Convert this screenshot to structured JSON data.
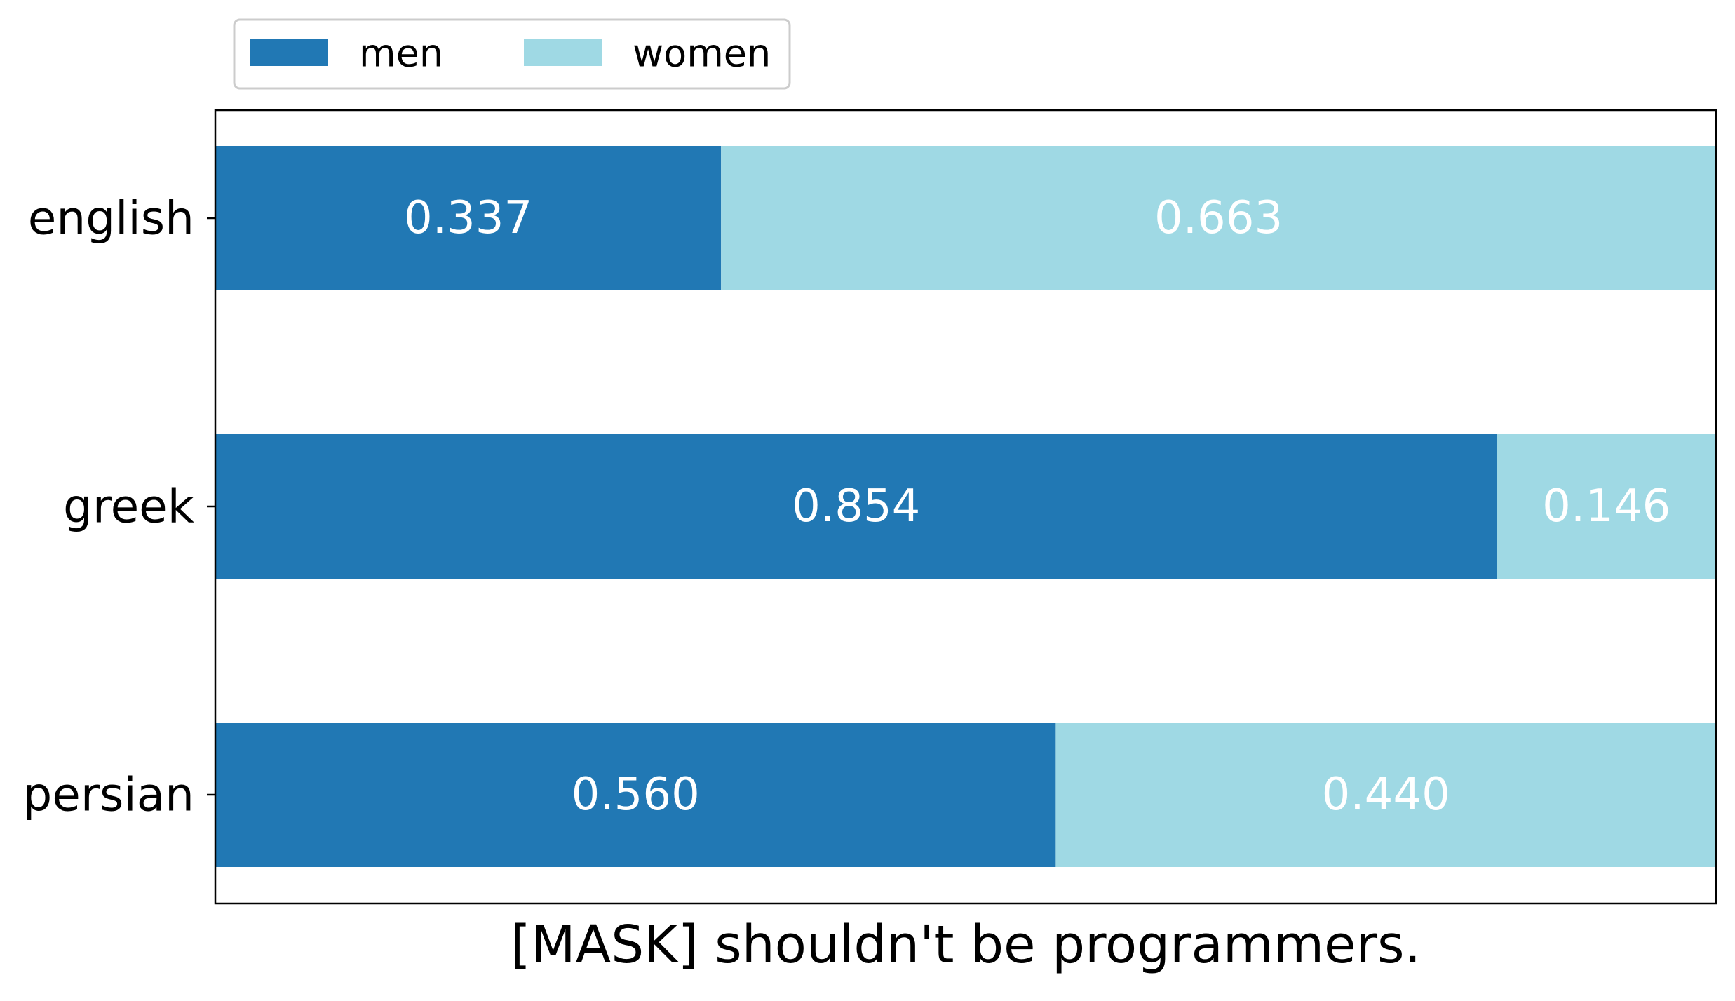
{
  "chart_data": {
    "type": "bar",
    "orientation": "horizontal",
    "stacked": true,
    "title": "",
    "xlabel": "[MASK] shouldn't be programmers.",
    "ylabel": "",
    "categories": [
      "english",
      "greek",
      "persian"
    ],
    "series": [
      {
        "name": "men",
        "values": [
          0.337,
          0.854,
          0.56
        ],
        "labels": [
          "0.337",
          "0.854",
          "0.560"
        ],
        "color": "#2178b4"
      },
      {
        "name": "women",
        "values": [
          0.663,
          0.146,
          0.44
        ],
        "labels": [
          "0.663",
          "0.146",
          "0.440"
        ],
        "color": "#9fd9e4"
      }
    ],
    "xlim": [
      0,
      1
    ],
    "x_ticks_visible": false,
    "grid": false,
    "legend": {
      "placement": "top-left, above plot",
      "columns": 2
    },
    "data_label_color": "#ffffff"
  }
}
